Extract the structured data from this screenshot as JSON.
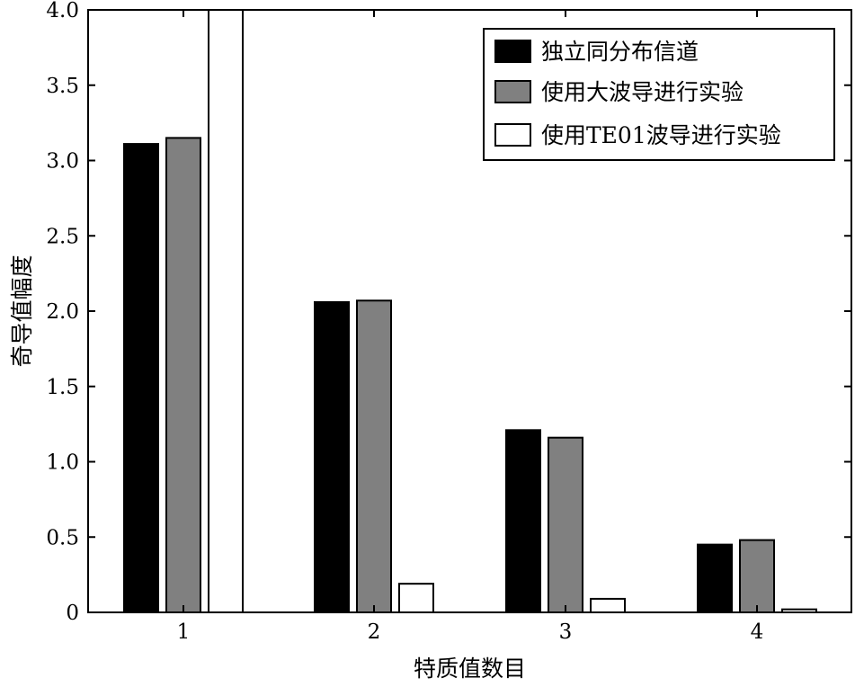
{
  "chart_data": {
    "type": "bar",
    "title": "",
    "xlabel": "特质值数目",
    "ylabel": "奇导值幅度",
    "categories": [
      "1",
      "2",
      "3",
      "4"
    ],
    "ylim": [
      0,
      4.0
    ],
    "yticks": [
      "0",
      "0.5",
      "1.0",
      "1.5",
      "2.0",
      "2.5",
      "3.0",
      "3.5",
      "4.0"
    ],
    "grid": false,
    "legend_position": "top-right",
    "series": [
      {
        "name": "独立同分布信道",
        "color": "#000000",
        "values": [
          3.11,
          2.06,
          1.21,
          0.45
        ]
      },
      {
        "name": "使用大波导进行实验",
        "color": "#808080",
        "values": [
          3.15,
          2.07,
          1.16,
          0.48
        ]
      },
      {
        "name": "使用TE01波导进行实验",
        "color": "#ffffff",
        "values": [
          4.0,
          0.19,
          0.09,
          0.02
        ]
      }
    ]
  }
}
